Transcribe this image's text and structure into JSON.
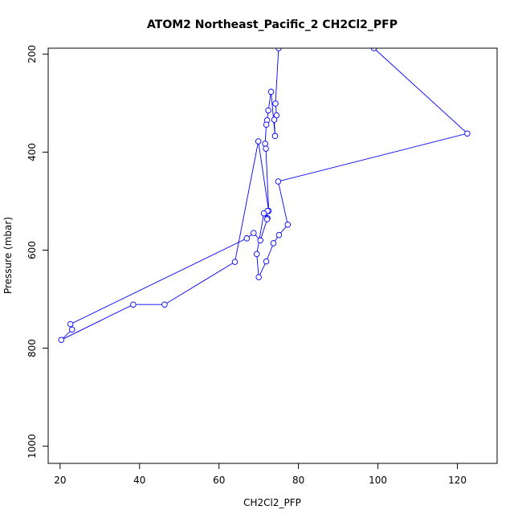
{
  "chart_data": {
    "type": "line",
    "title": "ATOM2 Northeast_Pacific_2 CH2Cl2_PFP",
    "xlabel": "CH2Cl2_PFP",
    "ylabel": "Pressure (mbar)",
    "xlim": [
      17,
      130
    ],
    "ylim": [
      1035,
      188
    ],
    "y_inverted": true,
    "x_ticks": [
      20,
      40,
      60,
      80,
      100,
      120
    ],
    "y_ticks": [
      200,
      400,
      600,
      800,
      1000
    ],
    "markers": "open-circle",
    "grid": false,
    "legend": "none",
    "color": "#0000ff",
    "series": [
      {
        "x": [
          75.0,
          74.2,
          74.5,
          73.9,
          74.1,
          73.1,
          72.4,
          72.1,
          71.9,
          71.6,
          71.8,
          72.5,
          69.9,
          64.0,
          46.3,
          38.4,
          20.3,
          23.0,
          22.6,
          67.0,
          68.7,
          70.4,
          72.2,
          72.1,
          71.6,
          72.2,
          71.3,
          69.5,
          70.0,
          71.9,
          73.7,
          75.1,
          77.3,
          74.9,
          122.5,
          99.0
        ],
        "y": [
          188,
          301,
          325,
          334,
          367,
          277,
          315,
          335,
          344,
          383,
          393,
          520,
          378,
          624,
          711,
          711,
          783,
          762,
          751,
          576,
          565,
          580,
          535,
          537,
          525,
          520,
          525,
          608,
          655,
          623,
          586,
          569,
          548,
          460,
          362,
          188
        ]
      }
    ]
  }
}
